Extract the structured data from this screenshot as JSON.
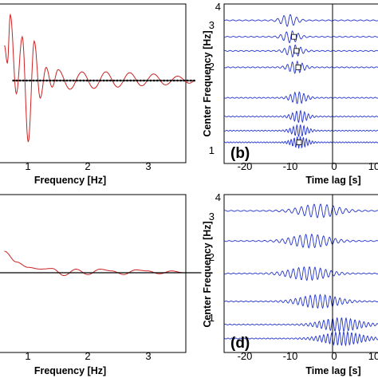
{
  "chart_data": [
    {
      "id": "a",
      "type": "line",
      "xlabel": "Frequency [Hz]",
      "x_ticks": [
        "1",
        "2",
        "3"
      ],
      "xlim": [
        0.0,
        3.5
      ],
      "series": [
        {
          "color": "#cc2222",
          "style": "oscillating curve",
          "x": [
            0.1,
            0.15,
            0.2,
            0.3,
            0.4,
            0.5,
            0.6,
            0.7,
            0.8,
            0.9,
            1.0,
            1.2,
            1.4,
            1.6,
            1.8,
            2.0,
            2.2,
            2.4,
            2.6,
            2.8,
            3.0,
            3.2,
            3.3
          ],
          "y": [
            0.8,
            0.4,
            1.5,
            -0.3,
            1.0,
            -1.4,
            0.9,
            -0.4,
            0.3,
            -0.15,
            0.25,
            -0.2,
            0.2,
            -0.18,
            0.2,
            -0.15,
            0.18,
            -0.12,
            0.15,
            -0.1,
            0.1,
            -0.06,
            0.0
          ]
        },
        {
          "color": "#000000",
          "style": "flat line with dot markers",
          "x": [
            0.25,
            3.3
          ],
          "y": [
            0.0,
            0.0
          ]
        }
      ]
    },
    {
      "id": "b",
      "type": "line",
      "label": "(b)",
      "xlabel": "Time lag [s]",
      "ylabel": "Center Frequency [Hz]",
      "x_ticks": [
        "-20",
        "-10",
        "0",
        "10"
      ],
      "y_ticks": [
        "1",
        "2",
        "3",
        "4"
      ],
      "xlim": [
        -25,
        12
      ],
      "ylim": [
        0.6,
        4.0
      ],
      "vertical_line_at": 0,
      "series": [
        {
          "center_frequency": 3.65,
          "packet_center_s": -10.0,
          "marker_s": null
        },
        {
          "center_frequency": 3.3,
          "packet_center_s": -9.5,
          "marker_s": -8.8
        },
        {
          "center_frequency": 3.0,
          "packet_center_s": -8.8,
          "marker_s": -8.2
        },
        {
          "center_frequency": 2.65,
          "packet_center_s": -8.3,
          "marker_s": -7.8
        },
        {
          "center_frequency": 2.0,
          "packet_center_s": -7.8,
          "marker_s": null
        },
        {
          "center_frequency": 1.6,
          "packet_center_s": -7.5,
          "marker_s": null
        },
        {
          "center_frequency": 1.3,
          "packet_center_s": -7.5,
          "marker_s": null
        },
        {
          "center_frequency": 1.05,
          "packet_center_s": -7.5,
          "marker_s": -7.6
        }
      ]
    },
    {
      "id": "c",
      "type": "line",
      "xlabel": "Frequency [Hz]",
      "x_ticks": [
        "1",
        "2",
        "3"
      ],
      "xlim": [
        0.0,
        3.5
      ],
      "series": [
        {
          "color": "#cc2222",
          "style": "small oscillating curve",
          "x": [
            0.1,
            0.3,
            0.5,
            0.7,
            0.9,
            1.1,
            1.3,
            1.5,
            1.7,
            1.9,
            2.1,
            2.3,
            2.5,
            2.7,
            2.9,
            3.1
          ],
          "y": [
            0.6,
            0.3,
            0.15,
            0.1,
            0.12,
            -0.08,
            0.1,
            -0.05,
            0.1,
            0.05,
            -0.05,
            0.08,
            0.05,
            -0.03,
            0.05,
            0.0
          ]
        },
        {
          "color": "#000000",
          "style": "flat line",
          "x": [
            0.0,
            3.4
          ],
          "y": [
            0.0,
            0.0
          ]
        }
      ]
    },
    {
      "id": "d",
      "type": "line",
      "label": "(d)",
      "xlabel": "Time lag [s]",
      "ylabel": "Center Frequency [Hz]",
      "x_ticks": [
        "-20",
        "-10",
        "0",
        "10"
      ],
      "y_ticks": [
        "1",
        "2",
        "3",
        "4"
      ],
      "xlim": [
        -25,
        12
      ],
      "ylim": [
        0.6,
        4.0
      ],
      "vertical_line_at": 0,
      "series": [
        {
          "center_frequency": 3.65,
          "packet_center_s": -3.0
        },
        {
          "center_frequency": 3.0,
          "packet_center_s": -5.0
        },
        {
          "center_frequency": 2.3,
          "packet_center_s": -5.5
        },
        {
          "center_frequency": 1.7,
          "packet_center_s": -3.0
        },
        {
          "center_frequency": 1.2,
          "packet_center_s": 2.0
        },
        {
          "center_frequency": 0.9,
          "packet_center_s": 2.5
        }
      ]
    }
  ]
}
